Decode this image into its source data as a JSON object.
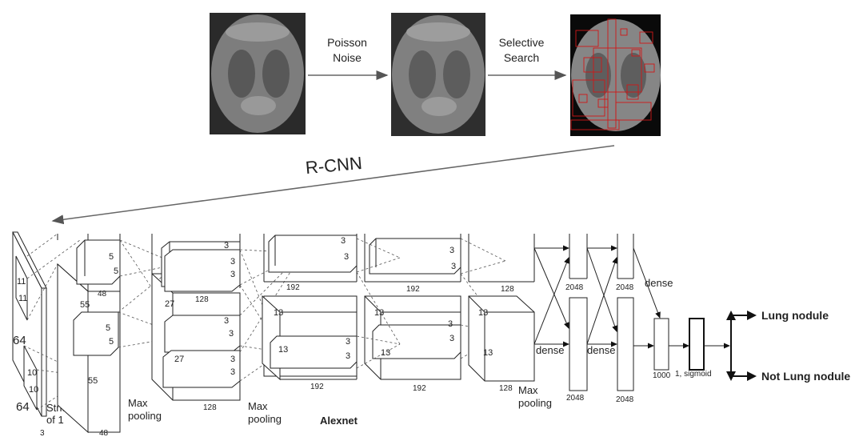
{
  "pipeline": {
    "step1_label_line1": "Poisson",
    "step1_label_line2": "Noise",
    "step2_label_line1": "Selective",
    "step2_label_line2": "Search",
    "rcnn_label": "R-CNN"
  },
  "network": {
    "title": "Alexnet",
    "input": {
      "size_top": "64",
      "size_bottom": "64",
      "depth": "3",
      "kernel_top": "11",
      "kernel_top2": "11",
      "kernel_bot": "10",
      "kernel_bot2": "10",
      "stride_line1": "Stride",
      "stride_line2": "of 1"
    },
    "conv1": {
      "dim": "55",
      "dim2": "55",
      "depth": "48",
      "depth_top": "48",
      "k1": "5",
      "k2": "5",
      "k3": "5",
      "k4": "5"
    },
    "conv2": {
      "dim": "27",
      "dim2": "27",
      "depth_top": "128",
      "depth_bot": "128",
      "k1": "3",
      "k2": "3",
      "k3": "3",
      "k4": "3",
      "k5": "3",
      "k6": "3",
      "k7": "3",
      "k8": "3",
      "pool_line1": "Max",
      "pool_line2": "pooling"
    },
    "conv3": {
      "dim": "13",
      "dim2": "13",
      "depth_top": "192",
      "depth_bot": "192",
      "k1": "3",
      "k2": "3",
      "k3": "3",
      "k4": "3",
      "pool_line1": "Max",
      "pool_line2": "pooling"
    },
    "conv4": {
      "dim": "13",
      "dim2": "13",
      "depth_top": "192",
      "depth_bot": "192",
      "k1": "3",
      "k2": "3",
      "k3": "3",
      "k4": "3"
    },
    "conv5": {
      "dim": "13",
      "dim2": "13",
      "depth_top": "128",
      "depth_bot": "128",
      "pool_line1": "Max",
      "pool_line2": "pooling"
    },
    "fc": {
      "fc1_top": "2048",
      "fc1_bot": "2048",
      "fc2_top": "2048",
      "fc2_bot": "2048",
      "fc3": "1000",
      "out": "1, sigmoid",
      "dense1": "dense",
      "dense2": "dense",
      "dense3": "dense"
    },
    "outputs": {
      "positive": "Lung nodule",
      "negative": "Not Lung nodule"
    }
  }
}
